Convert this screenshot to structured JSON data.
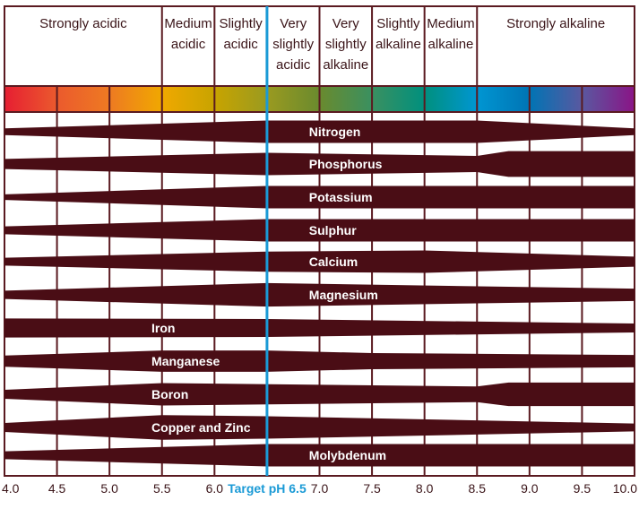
{
  "colors": {
    "band": "#4a0d15",
    "grid": "#5a1a20",
    "target": "#1a9ad6",
    "text": "#3a1418",
    "label": "#ffffff"
  },
  "ph_axis": {
    "range": [
      4.0,
      10.0
    ],
    "ticks": [
      "4.0",
      "4.5",
      "5.0",
      "5.5",
      "6.0",
      "6.5",
      "7.0",
      "7.5",
      "8.0",
      "8.5",
      "9.0",
      "9.5",
      "10.0"
    ],
    "target_label": "Target pH 6.5",
    "target_value": 6.5
  },
  "categories": [
    {
      "from": 4.0,
      "to": 5.5,
      "lines": [
        "Strongly acidic"
      ]
    },
    {
      "from": 5.5,
      "to": 6.0,
      "lines": [
        "Medium",
        "acidic"
      ]
    },
    {
      "from": 6.0,
      "to": 6.5,
      "lines": [
        "Slightly",
        "acidic"
      ]
    },
    {
      "from": 6.5,
      "to": 7.0,
      "lines": [
        "Very",
        "slightly",
        "acidic"
      ]
    },
    {
      "from": 7.0,
      "to": 7.5,
      "lines": [
        "Very",
        "slightly",
        "alkaline"
      ]
    },
    {
      "from": 7.5,
      "to": 8.0,
      "lines": [
        "Slightly",
        "alkaline"
      ]
    },
    {
      "from": 8.0,
      "to": 8.5,
      "lines": [
        "Medium",
        "alkaline"
      ]
    },
    {
      "from": 8.5,
      "to": 10.0,
      "lines": [
        "Strongly alkaline"
      ]
    }
  ],
  "ph_colors": [
    "#e61e32",
    "#eb5a2d",
    "#ee7a22",
    "#f0a800",
    "#c8a400",
    "#9a9a20",
    "#6a8a2e",
    "#3a9060",
    "#00907e",
    "#0096d2",
    "#0074b4",
    "#5a58a0",
    "#8a1486"
  ],
  "nutrients": [
    {
      "name": "Nitrogen",
      "label_ph": 6.9,
      "availability": [
        [
          4.0,
          0.3
        ],
        [
          6.5,
          1.0
        ],
        [
          8.5,
          1.0
        ],
        [
          10.0,
          0.3
        ]
      ]
    },
    {
      "name": "Phosphorus",
      "label_ph": 6.9,
      "availability": [
        [
          4.0,
          0.45
        ],
        [
          6.5,
          1.0
        ],
        [
          8.5,
          0.72
        ],
        [
          8.8,
          1.15
        ],
        [
          10.0,
          1.15
        ]
      ]
    },
    {
      "name": "Potassium",
      "label_ph": 6.9,
      "availability": [
        [
          4.0,
          0.25
        ],
        [
          6.5,
          1.0
        ],
        [
          10.0,
          1.0
        ]
      ]
    },
    {
      "name": "Sulphur",
      "label_ph": 6.9,
      "availability": [
        [
          4.0,
          0.35
        ],
        [
          6.5,
          1.0
        ],
        [
          10.0,
          1.0
        ]
      ]
    },
    {
      "name": "Calcium",
      "label_ph": 6.9,
      "availability": [
        [
          4.0,
          0.35
        ],
        [
          6.5,
          0.9
        ],
        [
          8.0,
          1.0
        ],
        [
          10.0,
          0.45
        ]
      ]
    },
    {
      "name": "Magnesium",
      "label_ph": 6.9,
      "availability": [
        [
          4.0,
          0.37
        ],
        [
          6.5,
          1.05
        ],
        [
          10.0,
          0.55
        ]
      ]
    },
    {
      "name": "Iron",
      "label_ph": 5.4,
      "availability": [
        [
          4.0,
          0.85
        ],
        [
          6.5,
          0.8
        ],
        [
          10.0,
          0.4
        ]
      ]
    },
    {
      "name": "Manganese",
      "label_ph": 5.4,
      "availability": [
        [
          4.0,
          0.5
        ],
        [
          5.5,
          0.95
        ],
        [
          6.5,
          0.95
        ],
        [
          7.5,
          0.72
        ],
        [
          10.0,
          0.55
        ]
      ]
    },
    {
      "name": "Boron",
      "label_ph": 5.4,
      "availability": [
        [
          4.0,
          0.4
        ],
        [
          5.5,
          1.0
        ],
        [
          8.5,
          0.7
        ],
        [
          8.8,
          1.05
        ],
        [
          10.0,
          1.05
        ]
      ]
    },
    {
      "name": "Copper and Zinc",
      "label_ph": 5.4,
      "availability": [
        [
          4.0,
          0.4
        ],
        [
          5.5,
          1.1
        ],
        [
          6.5,
          1.0
        ],
        [
          10.0,
          0.35
        ]
      ]
    },
    {
      "name": "Molybdenum",
      "label_ph": 6.9,
      "availability": [
        [
          4.0,
          0.35
        ],
        [
          6.5,
          1.0
        ],
        [
          10.0,
          1.0
        ]
      ]
    }
  ]
}
